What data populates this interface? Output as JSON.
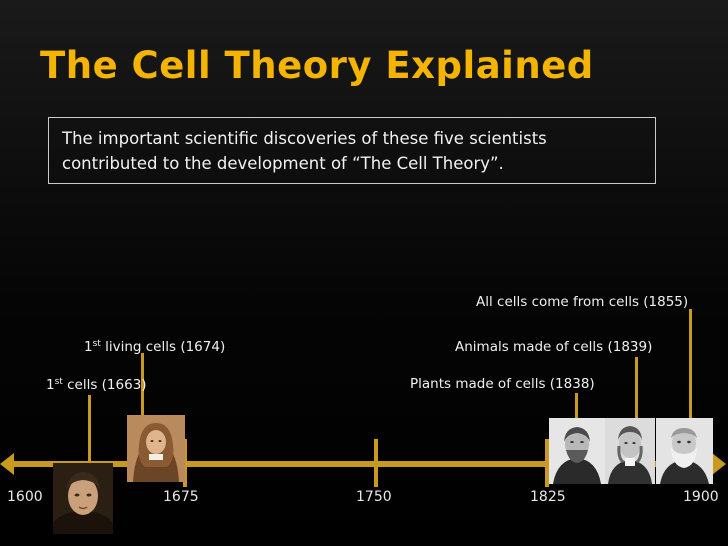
{
  "slide": {
    "title": "The Cell Theory Explained",
    "intro_line1": "The important scientific discoveries of these five scientists",
    "intro_line2": "contributed to the development of “The Cell Theory”."
  },
  "timeline": {
    "years": [
      "1600",
      "1675",
      "1750",
      "1825",
      "1900"
    ],
    "events": [
      {
        "sup_prefix": "1",
        "sup": "st",
        "text": " cells (1663)"
      },
      {
        "sup_prefix": "1",
        "sup": "st",
        "text": " living cells (1674)"
      },
      {
        "text": "Plants made of cells (1838)"
      },
      {
        "text": "Animals made of cells (1839)"
      },
      {
        "text": "All cells come from cells (1855)"
      }
    ]
  },
  "colors": {
    "title": "#f5b400",
    "timeline": "#c99a1e",
    "background": "#000000"
  }
}
